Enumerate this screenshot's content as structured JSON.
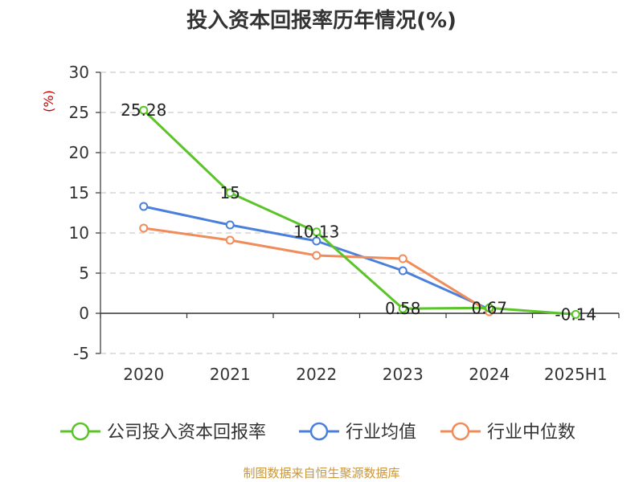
{
  "chart_data": {
    "type": "line",
    "title": "投入资本回报率历年情况(%)",
    "unit_label": "(%)",
    "categories": [
      "2020",
      "2021",
      "2022",
      "2023",
      "2024",
      "2025H1"
    ],
    "ylim": [
      -5,
      30
    ],
    "yticks": [
      -5,
      0,
      5,
      10,
      15,
      20,
      25,
      30
    ],
    "grid": true,
    "legend_position": "bottom",
    "series": [
      {
        "name": "公司投入资本回报率",
        "color": "#5bc42a",
        "values": [
          25.28,
          15,
          10.13,
          0.58,
          0.67,
          -0.14
        ],
        "labels": [
          "25.28",
          "15",
          "10.13",
          "0.58",
          "0.67",
          "-0.14"
        ]
      },
      {
        "name": "行业均值",
        "color": "#4a7fdc",
        "values": [
          13.3,
          11.0,
          9.0,
          5.3,
          0.5,
          null
        ]
      },
      {
        "name": "行业中位数",
        "color": "#f08c5a",
        "values": [
          10.6,
          9.1,
          7.2,
          6.8,
          0.2,
          null
        ]
      }
    ]
  },
  "source": "制图数据来自恒生聚源数据库"
}
